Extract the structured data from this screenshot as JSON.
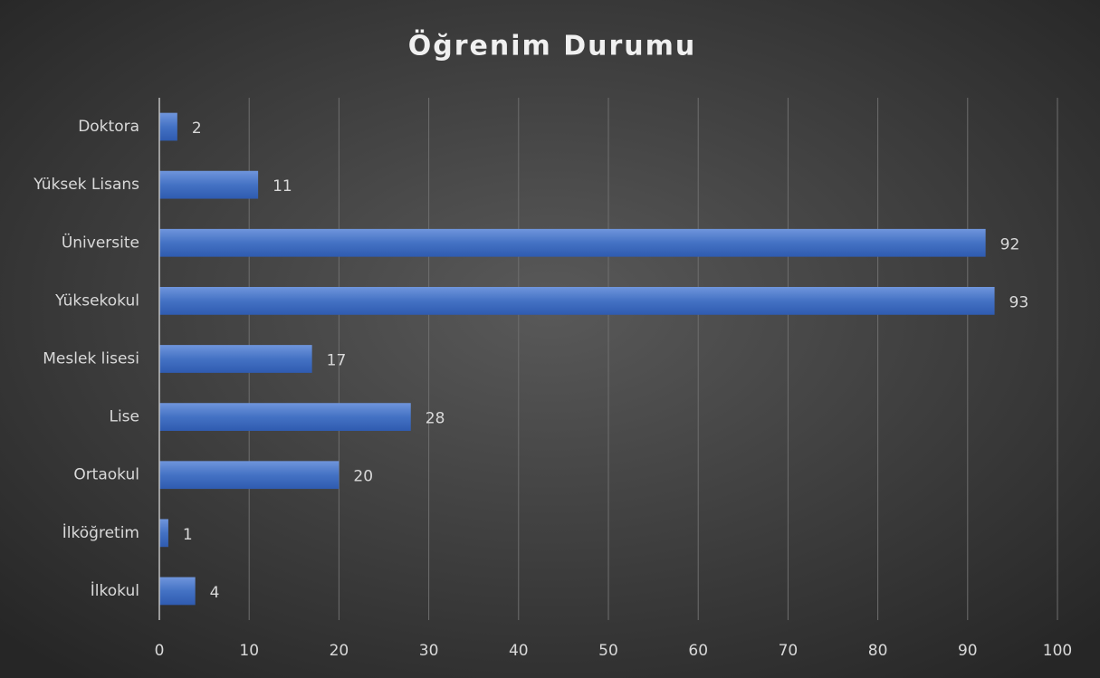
{
  "chart_data": {
    "type": "bar",
    "orientation": "horizontal",
    "title": "Öğrenim Durumu",
    "categories": [
      "Doktora",
      "Yüksek Lisans",
      "Üniversite",
      "Yüksekokul",
      "Meslek lisesi",
      "Lise",
      "Ortaokul",
      "İlköğretim",
      "İlkokul"
    ],
    "values": [
      2,
      11,
      92,
      93,
      17,
      28,
      20,
      1,
      4
    ],
    "color": "#4472c4",
    "xlim": [
      0,
      100
    ],
    "xticks": [
      0,
      10,
      20,
      30,
      40,
      50,
      60,
      70,
      80,
      90,
      100
    ],
    "grid": true
  }
}
